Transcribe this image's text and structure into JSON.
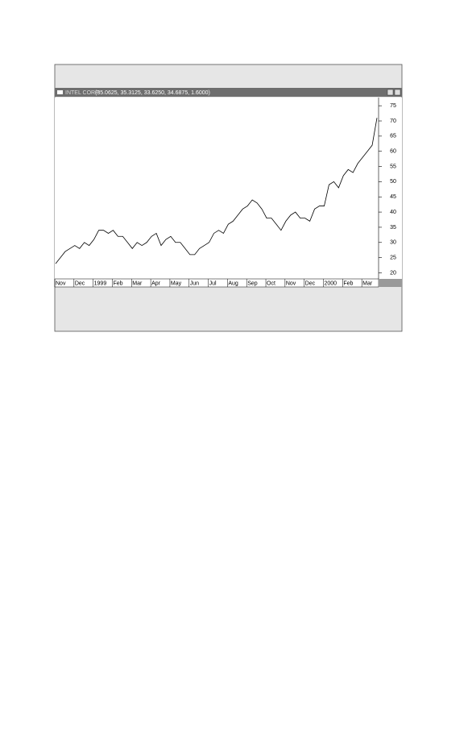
{
  "chart_data": {
    "type": "line",
    "title": "INTEL CORP",
    "subtitle": "(35.0625, 35.3125, 33.6250, 34.6875, 1.6000)",
    "categories": [
      "Nov",
      null,
      null,
      null,
      "Dec",
      null,
      null,
      null,
      "1999",
      null,
      null,
      null,
      "Feb",
      null,
      null,
      null,
      "Mar",
      null,
      null,
      null,
      "Apr",
      null,
      null,
      null,
      "May",
      null,
      null,
      null,
      "Jun",
      null,
      null,
      null,
      "Jul",
      null,
      null,
      null,
      "Aug",
      null,
      null,
      null,
      "Sep",
      null,
      null,
      null,
      "Oct",
      null,
      null,
      null,
      "Nov",
      null,
      null,
      null,
      "Dec",
      null,
      null,
      null,
      "2000",
      null,
      null,
      null,
      "Feb",
      null,
      null,
      null,
      "Mar",
      null,
      null,
      null
    ],
    "values": [
      23,
      25,
      27,
      28,
      29,
      28,
      30,
      29,
      31,
      34,
      34,
      33,
      34,
      32,
      32,
      30,
      28,
      30,
      29,
      30,
      32,
      33,
      29,
      31,
      32,
      30,
      30,
      28,
      26,
      26,
      28,
      29,
      30,
      33,
      34,
      33,
      36,
      37,
      39,
      41,
      42,
      44,
      43,
      41,
      38,
      38,
      36,
      34,
      37,
      39,
      40,
      38,
      38,
      37,
      41,
      42,
      42,
      49,
      50,
      48,
      52,
      54,
      53,
      56,
      58,
      60,
      62,
      71
    ],
    "color": "#000000",
    "ylim": [
      18,
      77.7
    ],
    "yticks": [
      20,
      25,
      30,
      35,
      40,
      45,
      50,
      55,
      60,
      65,
      70,
      75
    ]
  }
}
